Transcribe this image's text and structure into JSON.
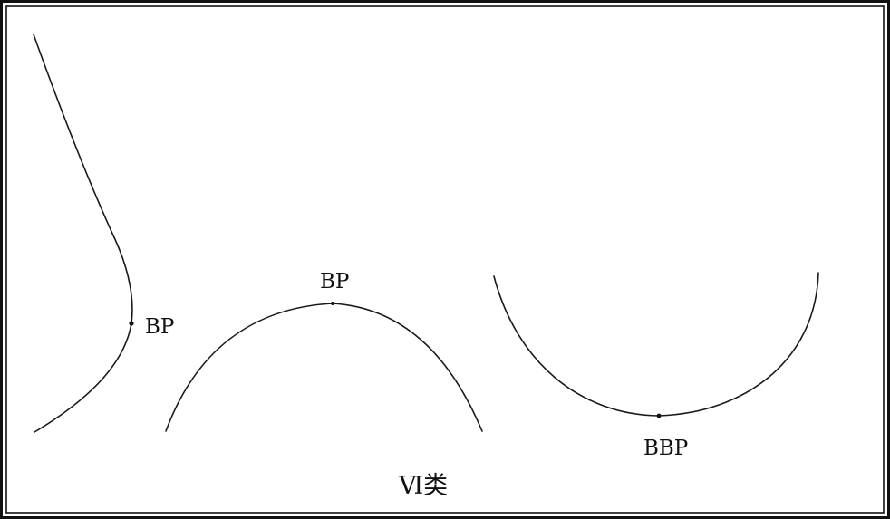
{
  "figure": {
    "caption": "Ⅵ类",
    "curves": [
      {
        "id": "left-curve",
        "point_label": "BP"
      },
      {
        "id": "middle-curve",
        "point_label": "BP"
      },
      {
        "id": "right-curve",
        "point_label": "BBP"
      }
    ]
  },
  "colors": {
    "stroke": "#1a1a1a",
    "border": "#111111",
    "background": "#ffffff"
  }
}
